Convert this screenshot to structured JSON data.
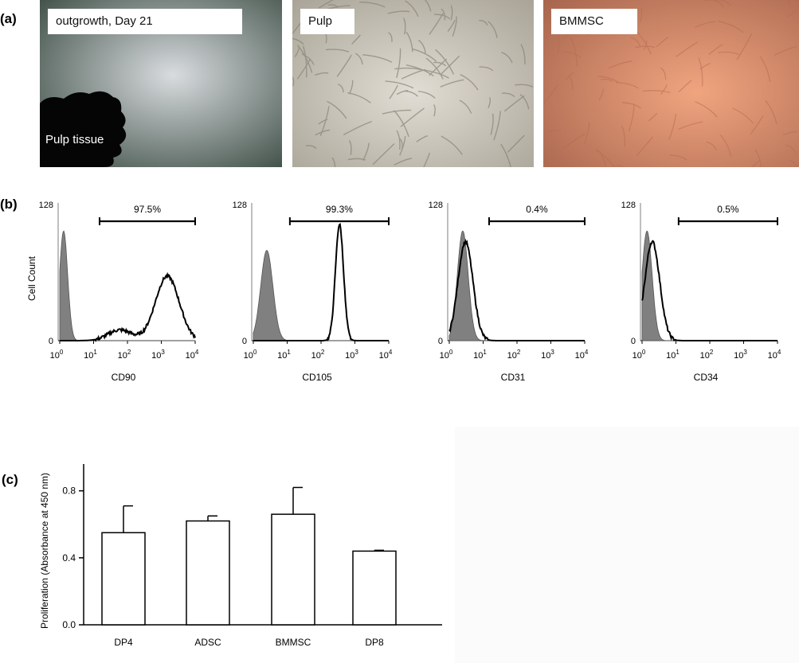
{
  "panels": {
    "a": "(a)",
    "b": "(b)",
    "c": "(c)"
  },
  "photos": [
    {
      "label": "outgrowth, Day 21",
      "sublabel": "Pulp  tissue"
    },
    {
      "label": "Pulp"
    },
    {
      "label": "BMMSC"
    }
  ],
  "colors": {
    "photo1_center": "#d9dcdf",
    "photo1_edge": "#3a4b42",
    "photo2_center": "#e2ddd4",
    "photo2_edge": "#a8a396",
    "photo3_center": "#f0a57f",
    "photo3_edge": "#a8664f",
    "histogram_fill": "#808080"
  },
  "chart_data": [
    {
      "type": "area",
      "xlabel": "CD90",
      "ylabel": "Cell Count",
      "ylim": [
        0,
        128
      ],
      "y_ticks": [
        "128",
        "0"
      ],
      "x_ticks": [
        "10^0",
        "10^1",
        "10^2",
        "10^3",
        "10^4"
      ],
      "x_scale": "log",
      "gate_label": "97.5%",
      "gate_range": [
        15,
        10000
      ],
      "control_peaks": [
        {
          "x": 1.3,
          "y": 102,
          "width": 0.12
        }
      ],
      "stain_peaks": [
        {
          "x": 1500,
          "y": 60,
          "width": 0.35
        },
        {
          "x": 60,
          "y": 10,
          "width": 0.35
        }
      ]
    },
    {
      "type": "area",
      "xlabel": "CD105",
      "ylabel": "",
      "ylim": [
        0,
        128
      ],
      "y_ticks": [
        "128",
        "0"
      ],
      "x_ticks": [
        "10^0",
        "10^1",
        "10^2",
        "10^3",
        "10^4"
      ],
      "x_scale": "log",
      "gate_label": "99.3%",
      "gate_range": [
        12,
        10000
      ],
      "control_peaks": [
        {
          "x": 2.5,
          "y": 84,
          "width": 0.18
        }
      ],
      "stain_peaks": [
        {
          "x": 350,
          "y": 108,
          "width": 0.12
        }
      ]
    },
    {
      "type": "area",
      "xlabel": "CD31",
      "ylabel": "",
      "ylim": [
        0,
        128
      ],
      "y_ticks": [
        "128",
        "0"
      ],
      "x_ticks": [
        "10^0",
        "10^1",
        "10^2",
        "10^3",
        "10^4"
      ],
      "x_scale": "log",
      "gate_label": "0.4%",
      "gate_range": [
        15,
        10000
      ],
      "control_peaks": [
        {
          "x": 2.5,
          "y": 102,
          "width": 0.16
        }
      ],
      "stain_peaks": [
        {
          "x": 3,
          "y": 92,
          "width": 0.22
        }
      ]
    },
    {
      "type": "area",
      "xlabel": "CD34",
      "ylabel": "",
      "ylim": [
        0,
        128
      ],
      "y_ticks": [
        "128",
        "0"
      ],
      "x_ticks": [
        "10^0",
        "10^1",
        "10^2",
        "10^3",
        "10^4"
      ],
      "x_scale": "log",
      "gate_label": "0.5%",
      "gate_range": [
        12,
        10000
      ],
      "control_peaks": [
        {
          "x": 1.4,
          "y": 102,
          "width": 0.15
        }
      ],
      "stain_peaks": [
        {
          "x": 2,
          "y": 92,
          "width": 0.22
        }
      ]
    },
    {
      "type": "bar",
      "categories": [
        "DP4",
        "ADSC",
        "BMMSC",
        "DP8"
      ],
      "values": [
        0.55,
        0.62,
        0.66,
        0.44
      ],
      "errors": [
        0.16,
        0.03,
        0.16,
        0.005
      ],
      "ylabel": "Proliferation (Absorbance at 450 nm)",
      "xlabel": "",
      "ylim": [
        0,
        0.96
      ],
      "y_ticks": [
        "0.0",
        "0.4",
        "0.8"
      ],
      "y_tick_values": [
        0,
        0.4,
        0.8
      ]
    }
  ]
}
